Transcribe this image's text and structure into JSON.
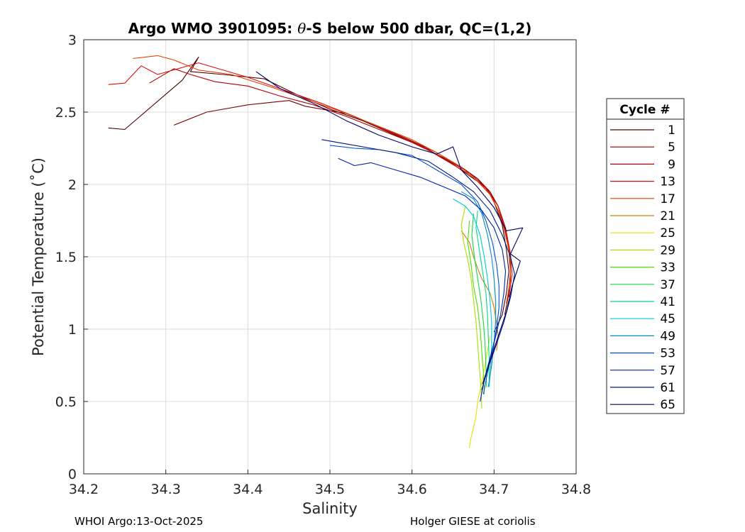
{
  "chart_data": {
    "type": "line",
    "title_parts": [
      "Argo WMO 3901095: ",
      "θ",
      "-S below 500 dbar,  QC=(1,2)"
    ],
    "xlabel": "Salinity",
    "ylabel": "Potential Temperature (˚C)",
    "xlim": [
      34.2,
      34.8
    ],
    "ylim": [
      0,
      3
    ],
    "xticks": [
      34.2,
      34.3,
      34.4,
      34.5,
      34.6,
      34.7,
      34.8
    ],
    "xtick_labels": [
      "34.2",
      "34.3",
      "34.4",
      "34.5",
      "34.6",
      "34.7",
      "34.8"
    ],
    "yticks": [
      0,
      0.5,
      1,
      1.5,
      2,
      2.5,
      3
    ],
    "ytick_labels": [
      "0",
      "0.5",
      "1",
      "1.5",
      "2",
      "2.5",
      "3"
    ],
    "grid": true,
    "legend_title": "Cycle #",
    "legend_position": "outside-right",
    "legend_entries": [
      {
        "label": "1",
        "color": "#4a0000"
      },
      {
        "label": "5",
        "color": "#7a0000"
      },
      {
        "label": "9",
        "color": "#b00000"
      },
      {
        "label": "13",
        "color": "#d81010"
      },
      {
        "label": "17",
        "color": "#e04000"
      },
      {
        "label": "21",
        "color": "#d08000"
      },
      {
        "label": "25",
        "color": "#e8e000"
      },
      {
        "label": "29",
        "color": "#a8e000"
      },
      {
        "label": "33",
        "color": "#50e000"
      },
      {
        "label": "37",
        "color": "#10d840"
      },
      {
        "label": "41",
        "color": "#00d890"
      },
      {
        "label": "45",
        "color": "#00c8d8"
      },
      {
        "label": "49",
        "color": "#0090c8"
      },
      {
        "label": "53",
        "color": "#0050d0"
      },
      {
        "label": "57",
        "color": "#0020b0"
      },
      {
        "label": "61",
        "color": "#001880"
      },
      {
        "label": "65",
        "color": "#000068"
      }
    ],
    "series": [
      {
        "name": "1",
        "color": "#4a0000",
        "points": [
          [
            34.23,
            2.39
          ],
          [
            34.25,
            2.38
          ],
          [
            34.32,
            2.72
          ],
          [
            34.34,
            2.88
          ],
          [
            34.33,
            2.78
          ],
          [
            34.37,
            2.76
          ],
          [
            34.42,
            2.73
          ],
          [
            34.46,
            2.62
          ],
          [
            34.5,
            2.52
          ],
          [
            34.54,
            2.44
          ],
          [
            34.58,
            2.34
          ],
          [
            34.62,
            2.24
          ],
          [
            34.65,
            2.14
          ],
          [
            34.67,
            2.06
          ],
          [
            34.69,
            1.98
          ],
          [
            34.7,
            1.88
          ],
          [
            34.71,
            1.72
          ],
          [
            34.715,
            1.55
          ],
          [
            34.718,
            1.4
          ],
          [
            34.715,
            1.25
          ],
          [
            34.71,
            1.1
          ],
          [
            34.7,
            0.98
          ]
        ]
      },
      {
        "name": "5",
        "color": "#7a0000",
        "points": [
          [
            34.31,
            2.41
          ],
          [
            34.35,
            2.5
          ],
          [
            34.4,
            2.55
          ],
          [
            34.45,
            2.58
          ],
          [
            34.47,
            2.54
          ],
          [
            34.52,
            2.49
          ],
          [
            34.56,
            2.4
          ],
          [
            34.6,
            2.3
          ],
          [
            34.63,
            2.22
          ],
          [
            34.66,
            2.12
          ],
          [
            34.68,
            2.04
          ],
          [
            34.695,
            1.95
          ],
          [
            34.705,
            1.85
          ],
          [
            34.712,
            1.7
          ],
          [
            34.718,
            1.55
          ],
          [
            34.72,
            1.4
          ],
          [
            34.718,
            1.25
          ],
          [
            34.713,
            1.1
          ]
        ]
      },
      {
        "name": "9",
        "color": "#b00000",
        "points": [
          [
            34.28,
            2.7
          ],
          [
            34.31,
            2.8
          ],
          [
            34.33,
            2.76
          ],
          [
            34.36,
            2.71
          ],
          [
            34.4,
            2.68
          ],
          [
            34.44,
            2.61
          ],
          [
            34.48,
            2.55
          ],
          [
            34.52,
            2.47
          ],
          [
            34.56,
            2.38
          ],
          [
            34.6,
            2.29
          ],
          [
            34.64,
            2.18
          ],
          [
            34.67,
            2.08
          ],
          [
            34.69,
            1.98
          ],
          [
            34.705,
            1.85
          ],
          [
            34.714,
            1.7
          ],
          [
            34.72,
            1.52
          ],
          [
            34.72,
            1.36
          ],
          [
            34.716,
            1.2
          ]
        ]
      },
      {
        "name": "13",
        "color": "#d81010",
        "points": [
          [
            34.23,
            2.69
          ],
          [
            34.25,
            2.7
          ],
          [
            34.27,
            2.82
          ],
          [
            34.29,
            2.76
          ],
          [
            34.34,
            2.84
          ],
          [
            34.4,
            2.74
          ],
          [
            34.45,
            2.64
          ],
          [
            34.49,
            2.56
          ],
          [
            34.53,
            2.47
          ],
          [
            34.57,
            2.37
          ],
          [
            34.61,
            2.27
          ],
          [
            34.64,
            2.17
          ],
          [
            34.67,
            2.07
          ],
          [
            34.69,
            1.97
          ],
          [
            34.705,
            1.85
          ],
          [
            34.713,
            1.7
          ],
          [
            34.72,
            1.52
          ],
          [
            34.722,
            1.38
          ],
          [
            34.718,
            1.22
          ]
        ]
      },
      {
        "name": "17",
        "color": "#e04000",
        "points": [
          [
            34.26,
            2.87
          ],
          [
            34.29,
            2.89
          ],
          [
            34.31,
            2.86
          ],
          [
            34.34,
            2.79
          ],
          [
            34.38,
            2.76
          ],
          [
            34.43,
            2.67
          ],
          [
            34.48,
            2.57
          ],
          [
            34.52,
            2.49
          ],
          [
            34.56,
            2.4
          ],
          [
            34.6,
            2.31
          ],
          [
            34.63,
            2.22
          ],
          [
            34.66,
            2.12
          ],
          [
            34.68,
            2.02
          ],
          [
            34.695,
            1.93
          ],
          [
            34.705,
            1.82
          ],
          [
            34.713,
            1.68
          ],
          [
            34.72,
            1.5
          ],
          [
            34.72,
            1.34
          ],
          [
            34.715,
            1.18
          ]
        ]
      },
      {
        "name": "21",
        "color": "#d08000",
        "points": [
          [
            34.66,
            1.68
          ],
          [
            34.67,
            1.6
          ],
          [
            34.675,
            1.5
          ],
          [
            34.68,
            1.42
          ],
          [
            34.685,
            1.35
          ],
          [
            34.69,
            1.3
          ],
          [
            34.695,
            1.25
          ],
          [
            34.7,
            1.15
          ],
          [
            34.703,
            1.05
          ],
          [
            34.705,
            0.95
          ],
          [
            34.703,
            0.85
          ]
        ]
      },
      {
        "name": "25",
        "color": "#e8e000",
        "points": [
          [
            34.67,
            0.18
          ],
          [
            34.672,
            0.25
          ],
          [
            34.675,
            0.32
          ],
          [
            34.678,
            0.4
          ],
          [
            34.68,
            0.5
          ],
          [
            34.684,
            0.6
          ],
          [
            34.688,
            0.72
          ],
          [
            34.692,
            0.85
          ],
          [
            34.695,
            0.95
          ]
        ]
      },
      {
        "name": "29",
        "color": "#a8e000",
        "points": [
          [
            34.665,
            1.85
          ],
          [
            34.66,
            1.72
          ],
          [
            34.663,
            1.6
          ],
          [
            34.668,
            1.48
          ],
          [
            34.672,
            1.35
          ],
          [
            34.675,
            1.2
          ],
          [
            34.678,
            1.05
          ],
          [
            34.68,
            0.9
          ],
          [
            34.682,
            0.75
          ],
          [
            34.684,
            0.6
          ],
          [
            34.685,
            0.45
          ]
        ]
      },
      {
        "name": "33",
        "color": "#50e000",
        "points": [
          [
            34.67,
            1.75
          ],
          [
            34.668,
            1.6
          ],
          [
            34.672,
            1.45
          ],
          [
            34.675,
            1.3
          ],
          [
            34.68,
            1.15
          ],
          [
            34.683,
            1.0
          ],
          [
            34.685,
            0.85
          ],
          [
            34.687,
            0.7
          ],
          [
            34.688,
            0.55
          ]
        ]
      },
      {
        "name": "37",
        "color": "#10d840",
        "points": [
          [
            34.675,
            1.8
          ],
          [
            34.673,
            1.65
          ],
          [
            34.676,
            1.5
          ],
          [
            34.68,
            1.35
          ],
          [
            34.684,
            1.2
          ],
          [
            34.687,
            1.05
          ],
          [
            34.689,
            0.9
          ],
          [
            34.69,
            0.75
          ],
          [
            34.691,
            0.6
          ]
        ]
      },
      {
        "name": "41",
        "color": "#00d890",
        "points": [
          [
            34.68,
            1.82
          ],
          [
            34.678,
            1.7
          ],
          [
            34.682,
            1.55
          ],
          [
            34.686,
            1.4
          ],
          [
            34.69,
            1.25
          ],
          [
            34.692,
            1.1
          ],
          [
            34.693,
            0.95
          ],
          [
            34.694,
            0.8
          ],
          [
            34.694,
            0.65
          ]
        ]
      },
      {
        "name": "45",
        "color": "#00c8d8",
        "points": [
          [
            34.65,
            1.9
          ],
          [
            34.665,
            1.85
          ],
          [
            34.675,
            1.78
          ],
          [
            34.683,
            1.65
          ],
          [
            34.688,
            1.5
          ],
          [
            34.692,
            1.35
          ],
          [
            34.695,
            1.2
          ],
          [
            34.697,
            1.05
          ],
          [
            34.697,
            0.9
          ],
          [
            34.696,
            0.75
          ],
          [
            34.694,
            0.6
          ]
        ]
      },
      {
        "name": "49",
        "color": "#0090c8",
        "points": [
          [
            34.66,
            1.95
          ],
          [
            34.675,
            1.9
          ],
          [
            34.685,
            1.8
          ],
          [
            34.692,
            1.65
          ],
          [
            34.697,
            1.5
          ],
          [
            34.7,
            1.35
          ],
          [
            34.702,
            1.2
          ],
          [
            34.702,
            1.05
          ],
          [
            34.7,
            0.9
          ],
          [
            34.697,
            0.75
          ],
          [
            34.693,
            0.6
          ]
        ]
      },
      {
        "name": "53",
        "color": "#0050d0",
        "points": [
          [
            34.5,
            2.27
          ],
          [
            34.53,
            2.25
          ],
          [
            34.56,
            2.24
          ],
          [
            34.6,
            2.2
          ],
          [
            34.63,
            2.1
          ],
          [
            34.66,
            2.0
          ],
          [
            34.68,
            1.88
          ],
          [
            34.69,
            1.75
          ],
          [
            34.698,
            1.6
          ],
          [
            34.703,
            1.45
          ],
          [
            34.706,
            1.3
          ],
          [
            34.706,
            1.15
          ],
          [
            34.703,
            1.0
          ],
          [
            34.698,
            0.85
          ],
          [
            34.692,
            0.7
          ],
          [
            34.687,
            0.55
          ]
        ]
      },
      {
        "name": "57",
        "color": "#0020b0",
        "points": [
          [
            34.51,
            2.18
          ],
          [
            34.53,
            2.13
          ],
          [
            34.55,
            2.15
          ],
          [
            34.58,
            2.1
          ],
          [
            34.61,
            2.05
          ],
          [
            34.64,
            1.98
          ],
          [
            34.665,
            1.92
          ],
          [
            34.685,
            1.82
          ],
          [
            34.7,
            1.7
          ],
          [
            34.71,
            1.55
          ],
          [
            34.714,
            1.4
          ],
          [
            34.712,
            1.25
          ],
          [
            34.708,
            1.1
          ],
          [
            34.702,
            0.95
          ],
          [
            34.695,
            0.8
          ],
          [
            34.688,
            0.65
          ],
          [
            34.683,
            0.5
          ]
        ]
      },
      {
        "name": "61",
        "color": "#001880",
        "points": [
          [
            34.49,
            2.31
          ],
          [
            34.52,
            2.28
          ],
          [
            34.55,
            2.25
          ],
          [
            34.58,
            2.22
          ],
          [
            34.62,
            2.16
          ],
          [
            34.65,
            2.05
          ],
          [
            34.675,
            1.95
          ],
          [
            34.695,
            1.82
          ],
          [
            34.71,
            1.65
          ],
          [
            34.72,
            1.5
          ],
          [
            34.725,
            1.38
          ],
          [
            34.72,
            1.22
          ],
          [
            34.712,
            1.05
          ],
          [
            34.702,
            0.88
          ],
          [
            34.692,
            0.72
          ],
          [
            34.685,
            0.58
          ]
        ]
      },
      {
        "name": "65",
        "color": "#000068",
        "points": [
          [
            34.41,
            2.78
          ],
          [
            34.44,
            2.66
          ],
          [
            34.48,
            2.56
          ],
          [
            34.52,
            2.44
          ],
          [
            34.56,
            2.34
          ],
          [
            34.6,
            2.26
          ],
          [
            34.63,
            2.21
          ],
          [
            34.65,
            2.26
          ],
          [
            34.66,
            2.1
          ],
          [
            34.68,
            1.98
          ],
          [
            34.7,
            1.84
          ],
          [
            34.715,
            1.68
          ],
          [
            34.735,
            1.7
          ],
          [
            34.72,
            1.52
          ],
          [
            34.732,
            1.47
          ],
          [
            34.722,
            1.3
          ],
          [
            34.715,
            1.12
          ],
          [
            34.705,
            0.95
          ],
          [
            34.695,
            0.78
          ],
          [
            34.686,
            0.62
          ]
        ]
      }
    ]
  },
  "footer": {
    "left": "WHOI Argo:13-Oct-2025",
    "right": "Holger GIESE at coriolis"
  }
}
